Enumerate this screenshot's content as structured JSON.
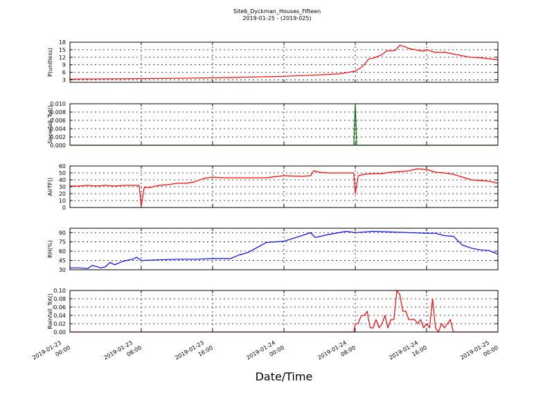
{
  "figure": {
    "title_line1": "Site6_Dyckman_Houses_Fifteen",
    "title_line2": "2019-01-25 - (2019-025)",
    "xlabel": "Date/Time"
  },
  "x_axis": {
    "range": [
      "2019-01-23 00:00",
      "2019-01-25 00:00"
    ],
    "ticks": [
      {
        "value": "2019-01-23 00:00",
        "line1": "2019-01-23",
        "line2": "00:00"
      },
      {
        "value": "2019-01-23 08:00",
        "line1": "2019-01-23",
        "line2": "08:00"
      },
      {
        "value": "2019-01-23 16:00",
        "line1": "2019-01-23",
        "line2": "16:00"
      },
      {
        "value": "2019-01-24 00:00",
        "line1": "2019-01-24",
        "line2": "00:00"
      },
      {
        "value": "2019-01-24 08:00",
        "line1": "2019-01-24",
        "line2": "08:00"
      },
      {
        "value": "2019-01-24 16:00",
        "line1": "2019-01-24",
        "line2": "16:00"
      },
      {
        "value": "2019-01-25 00:00",
        "line1": "2019-01-25",
        "line2": "00:00"
      }
    ]
  },
  "chart_data": [
    {
      "type": "line",
      "ylabel": "P(unitless)",
      "ylim": [
        2,
        18
      ],
      "yticks": [
        "3",
        "6",
        "9",
        "12",
        "15",
        "18"
      ],
      "grid": true,
      "series": [
        {
          "color": "#ff0000",
          "x": [
            "2019-01-23 00:00",
            "2019-01-23 06:00",
            "2019-01-23 12:00",
            "2019-01-23 18:00",
            "2019-01-24 00:00",
            "2019-01-24 03:00",
            "2019-01-24 06:00",
            "2019-01-24 07:00",
            "2019-01-24 08:00",
            "2019-01-24 08:30",
            "2019-01-24 09:00",
            "2019-01-24 09:30",
            "2019-01-24 10:00",
            "2019-01-24 11:00",
            "2019-01-24 11:30",
            "2019-01-24 12:00",
            "2019-01-24 12:30",
            "2019-01-24 13:00",
            "2019-01-24 13:30",
            "2019-01-24 14:00",
            "2019-01-24 15:00",
            "2019-01-24 15:40",
            "2019-01-24 16:00",
            "2019-01-24 16:30",
            "2019-01-24 17:00",
            "2019-01-24 18:00",
            "2019-01-24 19:00",
            "2019-01-24 20:00",
            "2019-01-24 21:00",
            "2019-01-24 22:00",
            "2019-01-25 00:00"
          ],
          "y": [
            3.3,
            3.4,
            3.6,
            3.9,
            4.4,
            4.8,
            5.3,
            5.8,
            6.5,
            7.5,
            9.0,
            11.3,
            11.6,
            13.0,
            14.5,
            14.5,
            14.8,
            16.8,
            16.3,
            15.5,
            14.8,
            14.4,
            15.1,
            14.4,
            13.9,
            14.0,
            13.3,
            12.6,
            12.0,
            11.8,
            11.0
          ]
        }
      ]
    },
    {
      "type": "line",
      "ylabel": "Snowfall_Tot()",
      "ylim": [
        0,
        0.01
      ],
      "yticks": [
        "0.000",
        "0.002",
        "0.004",
        "0.006",
        "0.008",
        "0.010"
      ],
      "grid": true,
      "series": [
        {
          "color": "#006400",
          "x": [
            "2019-01-23 00:00",
            "2019-01-24 07:50",
            "2019-01-24 08:00",
            "2019-01-24 08:10",
            "2019-01-25 00:00"
          ],
          "y": [
            0,
            0,
            0.01,
            0,
            0
          ]
        }
      ]
    },
    {
      "type": "line",
      "ylabel": "AirTF()",
      "ylim": [
        0,
        60
      ],
      "yticks": [
        "0",
        "10",
        "20",
        "30",
        "40",
        "50",
        "60"
      ],
      "grid": true,
      "series": [
        {
          "color": "#ff0000",
          "x": [
            "2019-01-23 00:00",
            "2019-01-23 01:00",
            "2019-01-23 02:00",
            "2019-01-23 03:00",
            "2019-01-23 04:00",
            "2019-01-23 05:00",
            "2019-01-23 06:00",
            "2019-01-23 07:00",
            "2019-01-23 07:45",
            "2019-01-23 08:00",
            "2019-01-23 08:20",
            "2019-01-23 09:00",
            "2019-01-23 10:00",
            "2019-01-23 11:00",
            "2019-01-23 12:00",
            "2019-01-23 13:00",
            "2019-01-23 14:00",
            "2019-01-23 15:00",
            "2019-01-23 16:00",
            "2019-01-23 17:00",
            "2019-01-23 18:00",
            "2019-01-23 20:00",
            "2019-01-23 22:00",
            "2019-01-24 00:00",
            "2019-01-24 02:00",
            "2019-01-24 03:00",
            "2019-01-24 03:20",
            "2019-01-24 04:00",
            "2019-01-24 05:00",
            "2019-01-24 06:00",
            "2019-01-24 07:50",
            "2019-01-24 08:00",
            "2019-01-24 08:20",
            "2019-01-24 09:00",
            "2019-01-24 10:00",
            "2019-01-24 11:00",
            "2019-01-24 12:00",
            "2019-01-24 13:00",
            "2019-01-24 14:00",
            "2019-01-24 15:00",
            "2019-01-24 16:00",
            "2019-01-24 17:00",
            "2019-01-24 18:00",
            "2019-01-24 19:00",
            "2019-01-24 20:00",
            "2019-01-24 21:00",
            "2019-01-24 22:00",
            "2019-01-24 23:00",
            "2019-01-25 00:00"
          ],
          "y": [
            31,
            31,
            32,
            31,
            32,
            31,
            32,
            32,
            32,
            2,
            29,
            29,
            32,
            33,
            35,
            35,
            37,
            42,
            44,
            43,
            43,
            43,
            43,
            46,
            45,
            46,
            53,
            51,
            50,
            50,
            50,
            20,
            46,
            48,
            49,
            49,
            51,
            52,
            53,
            56,
            55,
            51,
            50,
            48,
            44,
            40,
            39,
            38,
            35
          ]
        }
      ]
    },
    {
      "type": "line",
      "ylabel": "RH(%)",
      "ylim": [
        30,
        97
      ],
      "yticks": [
        "30",
        "45",
        "60",
        "75",
        "90"
      ],
      "grid": true,
      "series": [
        {
          "color": "#0000ff",
          "x": [
            "2019-01-23 00:00",
            "2019-01-23 01:00",
            "2019-01-23 02:00",
            "2019-01-23 02:30",
            "2019-01-23 03:30",
            "2019-01-23 04:00",
            "2019-01-23 04:30",
            "2019-01-23 05:00",
            "2019-01-23 06:00",
            "2019-01-23 07:00",
            "2019-01-23 07:30",
            "2019-01-23 08:00",
            "2019-01-23 10:00",
            "2019-01-23 12:00",
            "2019-01-23 14:00",
            "2019-01-23 16:00",
            "2019-01-23 18:00",
            "2019-01-23 19:00",
            "2019-01-23 20:00",
            "2019-01-23 21:00",
            "2019-01-23 22:00",
            "2019-01-24 00:00",
            "2019-01-24 02:00",
            "2019-01-24 03:00",
            "2019-01-24 03:30",
            "2019-01-24 05:00",
            "2019-01-24 07:00",
            "2019-01-24 08:00",
            "2019-01-24 10:00",
            "2019-01-24 12:00",
            "2019-01-24 14:00",
            "2019-01-24 16:00",
            "2019-01-24 17:00",
            "2019-01-24 18:00",
            "2019-01-24 19:00",
            "2019-01-24 20:00",
            "2019-01-24 21:00",
            "2019-01-24 22:00",
            "2019-01-24 23:00",
            "2019-01-25 00:00"
          ],
          "y": [
            33,
            33,
            32,
            37,
            33,
            35,
            42,
            38,
            44,
            47,
            50,
            45,
            46,
            47,
            47,
            48,
            48,
            54,
            58,
            66,
            74,
            76,
            85,
            90,
            82,
            87,
            92,
            90,
            92,
            91,
            90,
            89,
            89,
            85,
            84,
            70,
            65,
            62,
            61,
            55
          ]
        }
      ]
    },
    {
      "type": "line",
      "ylabel": "Rainfall_Tot()",
      "ylim": [
        0,
        0.1
      ],
      "yticks": [
        "0.00",
        "0.02",
        "0.04",
        "0.06",
        "0.08",
        "0.10"
      ],
      "grid": true,
      "series": [
        {
          "color": "#ff0000",
          "x": [
            "2019-01-23 00:00",
            "2019-01-24 07:50",
            "2019-01-24 08:00",
            "2019-01-24 08:20",
            "2019-01-24 08:40",
            "2019-01-24 09:00",
            "2019-01-24 09:20",
            "2019-01-24 09:40",
            "2019-01-24 10:00",
            "2019-01-24 10:20",
            "2019-01-24 10:40",
            "2019-01-24 11:00",
            "2019-01-24 11:20",
            "2019-01-24 11:40",
            "2019-01-24 12:00",
            "2019-01-24 12:20",
            "2019-01-24 12:40",
            "2019-01-24 13:00",
            "2019-01-24 13:20",
            "2019-01-24 13:40",
            "2019-01-24 14:00",
            "2019-01-24 14:20",
            "2019-01-24 14:40",
            "2019-01-24 15:00",
            "2019-01-24 15:20",
            "2019-01-24 15:40",
            "2019-01-24 16:00",
            "2019-01-24 16:20",
            "2019-01-24 16:40",
            "2019-01-24 17:00",
            "2019-01-24 17:20",
            "2019-01-24 17:40",
            "2019-01-24 18:00",
            "2019-01-24 18:20",
            "2019-01-24 18:40",
            "2019-01-24 19:00",
            "2019-01-25 00:00"
          ],
          "y": [
            0,
            0,
            0.02,
            0.02,
            0.04,
            0.04,
            0.05,
            0.01,
            0.01,
            0.03,
            0.01,
            0.02,
            0.04,
            0.01,
            0.03,
            0.03,
            0.1,
            0.09,
            0.05,
            0.05,
            0.03,
            0.03,
            0.03,
            0.02,
            0.03,
            0.01,
            0.02,
            0.01,
            0.08,
            0.01,
            0.0,
            0.02,
            0.01,
            0.02,
            0.03,
            0.0,
            0
          ]
        }
      ]
    }
  ]
}
